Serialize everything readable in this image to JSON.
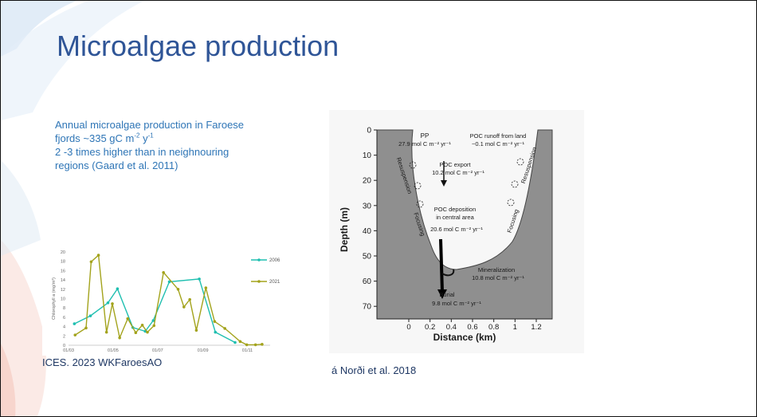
{
  "slide": {
    "title": "Microalgae production",
    "paragraph": {
      "line1": "Annual microalgae production in Faroese",
      "line2_pre": "fjords  ~335 gC m",
      "line2_sup1": "-2",
      "line2_mid": " y",
      "line2_sup2": "-1",
      "line3": "2 -3 times higher than in neighnouring",
      "line4": "regions (Gaard et al. 2011)"
    },
    "left_caption": "ICES. 2023 WKFaroesAO",
    "right_caption": "á Norði et al. 2018",
    "colors": {
      "title": "#2f5597",
      "text": "#2e75b6",
      "series_2006": "#1fbfb0",
      "series_2021": "#a3a31c"
    }
  },
  "chart_data": [
    {
      "type": "line",
      "ylabel": "Chlorophyll a (mg/m³)",
      "xlabel": "",
      "ylim": [
        0,
        20
      ],
      "yticks": [
        "0",
        "2",
        "4",
        "6",
        "8",
        "10",
        "12",
        "14",
        "16",
        "18",
        "20"
      ],
      "xticks": [
        {
          "label": "01/03",
          "x": 0
        },
        {
          "label": "01/05",
          "x": 61
        },
        {
          "label": "01/07",
          "x": 122
        },
        {
          "label": "01/09",
          "x": 184
        },
        {
          "label": "01/11",
          "x": 245
        }
      ],
      "x_unit": "days since 01/03",
      "legend_position": "top-right",
      "series": [
        {
          "name": "2006",
          "color": "#1fbfb0",
          "points": [
            [
              8,
              4.6
            ],
            [
              30,
              6.3
            ],
            [
              54,
              9.1
            ],
            [
              67,
              12.1
            ],
            [
              88,
              3.8
            ],
            [
              105,
              3.0
            ],
            [
              116,
              5.3
            ],
            [
              138,
              13.6
            ],
            [
              179,
              14.2
            ],
            [
              201,
              2.8
            ],
            [
              228,
              0.6
            ]
          ]
        },
        {
          "name": "2021",
          "color": "#a3a31c",
          "points": [
            [
              9,
              2.2
            ],
            [
              24,
              3.7
            ],
            [
              31,
              17.9
            ],
            [
              41,
              19.3
            ],
            [
              52,
              2.8
            ],
            [
              60,
              8.9
            ],
            [
              70,
              1.6
            ],
            [
              81,
              5.7
            ],
            [
              92,
              2.7
            ],
            [
              101,
              4.3
            ],
            [
              108,
              2.8
            ],
            [
              117,
              4.2
            ],
            [
              130,
              15.6
            ],
            [
              150,
              12.0
            ],
            [
              158,
              8.2
            ],
            [
              166,
              9.8
            ],
            [
              175,
              3.2
            ],
            [
              188,
              12.3
            ],
            [
              200,
              5.1
            ],
            [
              214,
              3.6
            ],
            [
              235,
              0.8
            ],
            [
              244,
              0.1
            ],
            [
              256,
              0.1
            ],
            [
              265,
              0.2
            ]
          ]
        }
      ]
    },
    {
      "type": "area",
      "ylabel": "Depth (m)",
      "xlabel": "Distance (km)",
      "ylim": [
        75,
        0
      ],
      "xlim": [
        -0.3,
        1.35
      ],
      "yticks": [
        "0",
        "10",
        "20",
        "30",
        "40",
        "50",
        "60",
        "70"
      ],
      "xticks": [
        "0",
        "0.2",
        "0.4",
        "0.6",
        "0.8",
        "1",
        "1.2"
      ],
      "annotations": {
        "pp_label": "PP",
        "pp_value": "27.9 mol C m⁻² yr⁻¹",
        "runoff_label": "POC runoff from land",
        "runoff_value": "~0.1 mol  C m⁻² yr⁻¹",
        "export_label": "POC export",
        "export_value": "10.2 mol C m⁻² yr⁻¹",
        "deposition_l1": "POC deposition",
        "deposition_l2": "in central area",
        "deposition_value": "20.6 mol C m⁻² yr⁻¹",
        "mineral_label": "Mineralization",
        "mineral_value": "10.8 mol C m⁻² yr⁻¹",
        "burial_label": "Burial",
        "burial_value": "9.8 mol C m⁻² yr⁻¹",
        "resuspension": "Resuspension",
        "focusing": "Focusing"
      }
    }
  ]
}
